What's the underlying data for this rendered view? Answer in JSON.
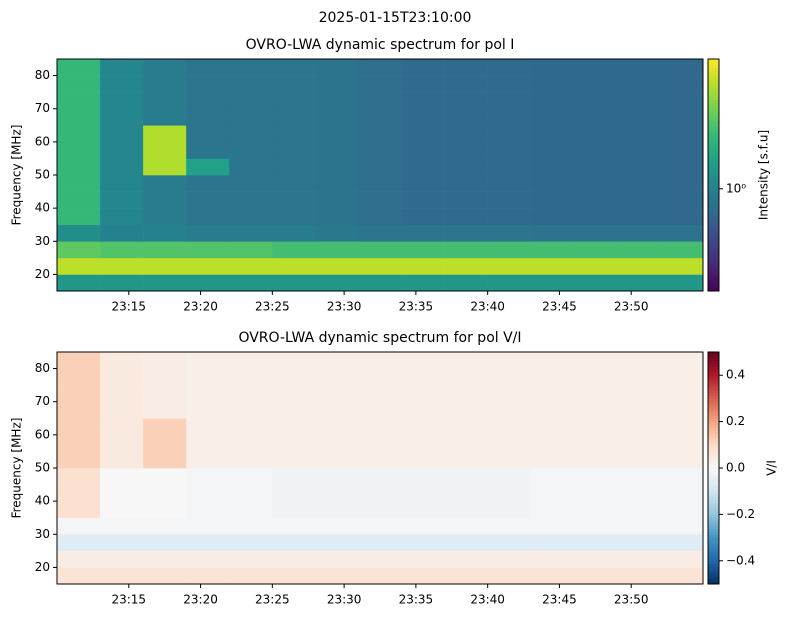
{
  "suptitle": "2025-01-15T23:10:00",
  "chart_data": [
    {
      "type": "heatmap",
      "title": "OVRO-LWA dynamic spectrum for pol I",
      "ylabel": "Frequency [MHz]",
      "colorbar_label": "Intensity [s.f.u]",
      "colormap": "viridis",
      "color_scale": "log",
      "clim": [
        0.4,
        3.2
      ],
      "cticks": [
        {
          "value": 1,
          "label": "10⁰"
        }
      ],
      "xlim": [
        10,
        55
      ],
      "xticks": [
        {
          "value": 15,
          "label": "23:15"
        },
        {
          "value": 20,
          "label": "23:20"
        },
        {
          "value": 25,
          "label": "23:25"
        },
        {
          "value": 30,
          "label": "23:30"
        },
        {
          "value": 35,
          "label": "23:35"
        },
        {
          "value": 40,
          "label": "23:40"
        },
        {
          "value": 45,
          "label": "23:45"
        },
        {
          "value": 50,
          "label": "23:50"
        }
      ],
      "ylim": [
        15,
        85
      ],
      "yticks": [
        20,
        30,
        40,
        50,
        60,
        70,
        80
      ],
      "xbins": [
        10,
        13,
        16,
        19,
        22,
        25,
        28,
        31,
        34,
        37,
        40,
        43,
        46,
        49,
        52,
        55
      ],
      "ybins": [
        15,
        20,
        25,
        30,
        35,
        40,
        45,
        50,
        55,
        60,
        65,
        70,
        75,
        80,
        85
      ],
      "z": [
        [
          1.2,
          1.2,
          1.2,
          1.2,
          1.2,
          1.2,
          1.2,
          1.2,
          1.2,
          1.2,
          1.2,
          1.2,
          1.2,
          1.2,
          1.2
        ],
        [
          2.6,
          2.6,
          2.6,
          2.6,
          2.6,
          2.6,
          2.6,
          2.6,
          2.6,
          2.6,
          2.6,
          2.6,
          2.6,
          2.6,
          2.6
        ],
        [
          1.9,
          1.8,
          1.8,
          1.8,
          1.8,
          1.7,
          1.7,
          1.7,
          1.7,
          1.7,
          1.7,
          1.7,
          1.7,
          1.7,
          1.7
        ],
        [
          1.1,
          1.0,
          1.0,
          0.95,
          0.95,
          0.95,
          0.92,
          0.9,
          0.9,
          0.9,
          0.9,
          0.88,
          0.88,
          0.88,
          0.88
        ],
        [
          1.6,
          1.05,
          0.95,
          0.9,
          0.9,
          0.9,
          0.88,
          0.85,
          0.82,
          0.82,
          0.82,
          0.8,
          0.8,
          0.8,
          0.8
        ],
        [
          1.6,
          1.05,
          0.95,
          0.9,
          0.9,
          0.9,
          0.88,
          0.85,
          0.82,
          0.82,
          0.82,
          0.8,
          0.8,
          0.8,
          0.8
        ],
        [
          1.6,
          1.05,
          0.95,
          0.9,
          0.9,
          0.9,
          0.88,
          0.85,
          0.82,
          0.82,
          0.82,
          0.8,
          0.8,
          0.8,
          0.8
        ],
        [
          1.6,
          1.05,
          2.5,
          1.3,
          0.9,
          0.9,
          0.88,
          0.85,
          0.82,
          0.82,
          0.82,
          0.8,
          0.8,
          0.8,
          0.8
        ],
        [
          1.6,
          1.05,
          2.5,
          0.9,
          0.9,
          0.9,
          0.88,
          0.85,
          0.82,
          0.82,
          0.82,
          0.8,
          0.8,
          0.8,
          0.8
        ],
        [
          1.6,
          1.05,
          2.5,
          0.9,
          0.9,
          0.9,
          0.88,
          0.85,
          0.82,
          0.82,
          0.82,
          0.8,
          0.8,
          0.8,
          0.8
        ],
        [
          1.6,
          1.05,
          0.95,
          0.9,
          0.9,
          0.9,
          0.88,
          0.85,
          0.82,
          0.82,
          0.82,
          0.8,
          0.8,
          0.8,
          0.8
        ],
        [
          1.6,
          1.05,
          0.95,
          0.9,
          0.9,
          0.9,
          0.88,
          0.85,
          0.82,
          0.82,
          0.82,
          0.8,
          0.8,
          0.8,
          0.8
        ],
        [
          1.6,
          1.05,
          0.95,
          0.9,
          0.9,
          0.9,
          0.88,
          0.85,
          0.82,
          0.82,
          0.82,
          0.8,
          0.8,
          0.8,
          0.8
        ],
        [
          1.6,
          1.05,
          0.95,
          0.9,
          0.9,
          0.9,
          0.88,
          0.85,
          0.82,
          0.82,
          0.82,
          0.8,
          0.8,
          0.8,
          0.8
        ]
      ]
    },
    {
      "type": "heatmap",
      "title": "OVRO-LWA dynamic spectrum for pol V/I",
      "ylabel": "Frequency [MHz]",
      "colorbar_label": "V/I",
      "colormap": "RdBu_r",
      "color_scale": "linear",
      "clim": [
        -0.5,
        0.5
      ],
      "cticks": [
        {
          "value": -0.4,
          "label": "−0.4"
        },
        {
          "value": -0.2,
          "label": "−0.2"
        },
        {
          "value": 0,
          "label": "0.0"
        },
        0.2,
        0.4
      ],
      "xlim": [
        10,
        55
      ],
      "xticks": [
        {
          "value": 15,
          "label": "23:15"
        },
        {
          "value": 20,
          "label": "23:20"
        },
        {
          "value": 25,
          "label": "23:25"
        },
        {
          "value": 30,
          "label": "23:30"
        },
        {
          "value": 35,
          "label": "23:35"
        },
        {
          "value": 40,
          "label": "23:40"
        },
        {
          "value": 45,
          "label": "23:45"
        },
        {
          "value": 50,
          "label": "23:50"
        }
      ],
      "ylim": [
        15,
        85
      ],
      "yticks": [
        20,
        30,
        40,
        50,
        60,
        70,
        80
      ],
      "xbins": [
        10,
        13,
        16,
        19,
        22,
        25,
        28,
        31,
        34,
        37,
        40,
        43,
        46,
        49,
        52,
        55
      ],
      "ybins": [
        15,
        20,
        25,
        30,
        35,
        40,
        45,
        50,
        55,
        60,
        65,
        70,
        75,
        80,
        85
      ],
      "z": [
        [
          0.07,
          0.07,
          0.07,
          0.07,
          0.07,
          0.07,
          0.07,
          0.07,
          0.07,
          0.07,
          0.07,
          0.07,
          0.07,
          0.07,
          0.07
        ],
        [
          0.04,
          0.04,
          0.04,
          0.04,
          0.04,
          0.04,
          0.04,
          0.04,
          0.04,
          0.04,
          0.04,
          0.04,
          0.04,
          0.04,
          0.04
        ],
        [
          -0.06,
          -0.06,
          -0.06,
          -0.06,
          -0.06,
          -0.06,
          -0.06,
          -0.06,
          -0.06,
          -0.06,
          -0.06,
          -0.06,
          -0.06,
          -0.06,
          -0.06
        ],
        [
          -0.01,
          -0.01,
          -0.01,
          -0.01,
          -0.01,
          -0.01,
          -0.01,
          -0.01,
          -0.01,
          -0.01,
          -0.01,
          -0.01,
          -0.01,
          -0.01,
          -0.01
        ],
        [
          0.08,
          0.0,
          0.0,
          -0.01,
          -0.01,
          -0.02,
          -0.02,
          -0.02,
          -0.02,
          -0.02,
          -0.02,
          -0.01,
          -0.01,
          -0.01,
          -0.01
        ],
        [
          0.08,
          0.0,
          0.0,
          -0.01,
          -0.01,
          -0.02,
          -0.02,
          -0.02,
          -0.02,
          -0.02,
          -0.02,
          -0.01,
          -0.01,
          -0.01,
          -0.01
        ],
        [
          0.08,
          0.0,
          0.0,
          -0.01,
          -0.01,
          -0.02,
          -0.02,
          -0.02,
          -0.02,
          -0.02,
          -0.02,
          -0.01,
          -0.01,
          -0.01,
          -0.01
        ],
        [
          0.12,
          0.05,
          0.12,
          0.03,
          0.03,
          0.03,
          0.03,
          0.03,
          0.03,
          0.03,
          0.03,
          0.03,
          0.03,
          0.03,
          0.03
        ],
        [
          0.12,
          0.05,
          0.12,
          0.03,
          0.03,
          0.03,
          0.03,
          0.03,
          0.03,
          0.03,
          0.03,
          0.03,
          0.03,
          0.03,
          0.03
        ],
        [
          0.12,
          0.05,
          0.12,
          0.03,
          0.03,
          0.03,
          0.03,
          0.03,
          0.03,
          0.03,
          0.03,
          0.03,
          0.03,
          0.03,
          0.03
        ],
        [
          0.12,
          0.05,
          0.04,
          0.03,
          0.03,
          0.03,
          0.03,
          0.03,
          0.03,
          0.03,
          0.03,
          0.03,
          0.03,
          0.03,
          0.03
        ],
        [
          0.12,
          0.05,
          0.04,
          0.03,
          0.03,
          0.03,
          0.03,
          0.03,
          0.03,
          0.03,
          0.03,
          0.03,
          0.03,
          0.03,
          0.03
        ],
        [
          0.12,
          0.05,
          0.04,
          0.03,
          0.03,
          0.03,
          0.03,
          0.03,
          0.03,
          0.03,
          0.03,
          0.03,
          0.03,
          0.03,
          0.03
        ],
        [
          0.12,
          0.05,
          0.04,
          0.03,
          0.03,
          0.03,
          0.03,
          0.03,
          0.03,
          0.03,
          0.03,
          0.03,
          0.03,
          0.03,
          0.03
        ]
      ]
    }
  ]
}
